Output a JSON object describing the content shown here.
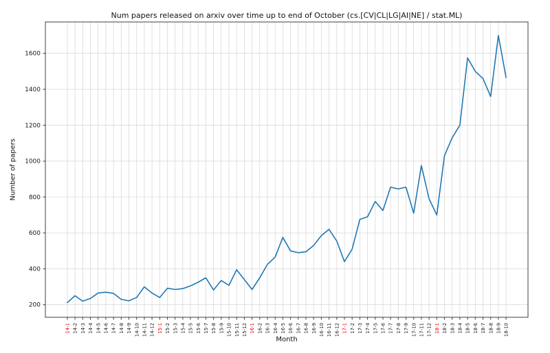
{
  "figure": {
    "title": "Num papers released on arxiv over time up to end of October (cs.[CV|CL|LG|AI|NE] / stat.ML)",
    "xlabel": "Month",
    "ylabel": "Number of papers"
  },
  "chart_data": {
    "type": "line",
    "title": "Num papers released on arxiv over time up to end of October (cs.[CV|CL|LG|AI|NE] / stat.ML)",
    "xlabel": "Month",
    "ylabel": "Number of papers",
    "legend": null,
    "grid": true,
    "line_color": "#1f77b4",
    "grid_color": "#d9d9d9",
    "spine_color": "#3c3c3c",
    "tick_label_color": "#1a1a1a",
    "highlight_tick_color": "#e50000",
    "highlighted_ticks": [
      "14-1",
      "15-1",
      "16-1",
      "17-1",
      "18-1"
    ],
    "ylim": [
      130,
      1775
    ],
    "yticks": [
      200,
      400,
      600,
      800,
      1000,
      1200,
      1400,
      1600
    ],
    "categories": [
      "14-1",
      "14-2",
      "14-3",
      "14-4",
      "14-5",
      "14-6",
      "14-7",
      "14-8",
      "14-9",
      "14-10",
      "14-11",
      "14-12",
      "15-1",
      "15-2",
      "15-3",
      "15-4",
      "15-5",
      "15-6",
      "15-7",
      "15-8",
      "15-9",
      "15-10",
      "15-11",
      "15-12",
      "16-1",
      "16-2",
      "16-3",
      "16-4",
      "16-5",
      "16-6",
      "16-7",
      "16-8",
      "16-9",
      "16-10",
      "16-11",
      "16-12",
      "17-1",
      "17-2",
      "17-3",
      "17-4",
      "17-5",
      "17-6",
      "17-7",
      "17-8",
      "17-9",
      "17-10",
      "17-11",
      "17-12",
      "18-1",
      "18-2",
      "18-3",
      "18-4",
      "18-5",
      "18-6",
      "18-7",
      "18-8",
      "18-9",
      "18-10"
    ],
    "values": [
      212,
      250,
      220,
      235,
      265,
      270,
      263,
      230,
      222,
      240,
      300,
      265,
      240,
      292,
      285,
      290,
      305,
      325,
      350,
      282,
      335,
      308,
      395,
      340,
      285,
      350,
      425,
      465,
      575,
      500,
      490,
      495,
      530,
      585,
      620,
      555,
      440,
      510,
      675,
      690,
      775,
      725,
      855,
      845,
      855,
      710,
      975,
      790,
      700,
      1030,
      1130,
      1200,
      1575,
      1500,
      1460,
      1360,
      1700,
      1465
    ]
  }
}
